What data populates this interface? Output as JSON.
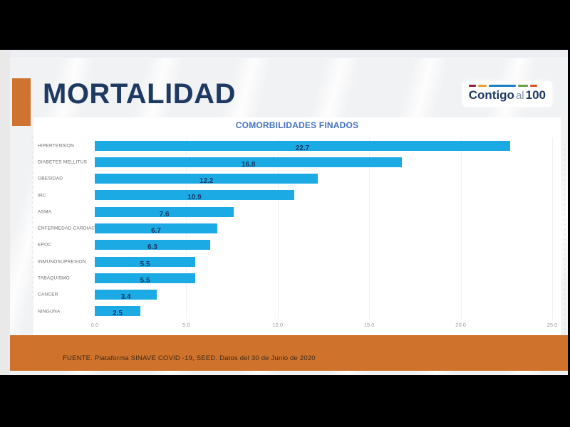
{
  "slide": {
    "title": "MORTALIDAD",
    "footer_source": "FUENTE. Plataforma SINAVE COVID -19, SEED. Datos del 30 de Junio de 2020"
  },
  "logo": {
    "part1": "Contigo",
    "part2": "al",
    "part3": "100",
    "dash_colors": [
      "#8e1f3e",
      "#e3a72e",
      "#1b7ec2",
      "#67a14a",
      "#d2542b"
    ]
  },
  "colors": {
    "bar": "#1caae4",
    "title_navy": "#1e3a63",
    "chart_title_blue": "#4472c4",
    "accent_orange": "#ce7430",
    "value_label_navy": "#163a66"
  },
  "chart_data": {
    "type": "bar",
    "orientation": "horizontal",
    "title": "COMORBILIDADES FINADOS",
    "categories": [
      "HIPERTENSION",
      "DIABETES MELLITUS",
      "OBESIDAD",
      "IRC",
      "ASMA",
      "ENFERMEDAD CARDIACA",
      "EPOC",
      "INMUNOSUPRESION",
      "TABAQUISMO",
      "CANCER",
      "NINGUNA"
    ],
    "values": [
      22.7,
      16.8,
      12.2,
      10.9,
      7.6,
      6.7,
      6.3,
      5.5,
      5.5,
      3.4,
      2.5
    ],
    "value_labels": [
      "22.7",
      "16.8",
      "12.2",
      "10.9",
      "7.6",
      "6.7",
      "6.3",
      "5.5",
      "5.5",
      "3.4",
      "2.5"
    ],
    "x_ticks": [
      "0.0",
      "5.0",
      "10.0",
      "15.0",
      "20.0",
      "25.0"
    ],
    "xlim": [
      0,
      25
    ],
    "xlabel": "",
    "ylabel": "",
    "grid": true,
    "legend": false
  }
}
